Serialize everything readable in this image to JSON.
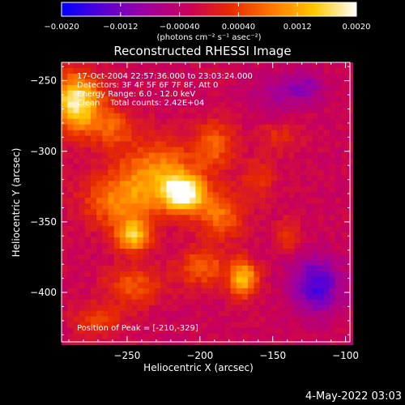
{
  "chart_data": {
    "type": "heatmap",
    "title": "Reconstructed RHESSI Image",
    "xlabel": "Heliocentric X (arcsec)",
    "ylabel": "Heliocentric Y (arcsec)",
    "xlim": [
      -295,
      -97
    ],
    "ylim": [
      -435,
      -237
    ],
    "x_ticks": [
      -250,
      -200,
      -150,
      -100
    ],
    "x_tick_labels": [
      "−250",
      "−200",
      "−150",
      "−100"
    ],
    "y_ticks": [
      -250,
      -300,
      -350,
      -400
    ],
    "y_tick_labels": [
      "−250",
      "−300",
      "−350",
      "−400"
    ],
    "colorbar": {
      "range": [
        -0.002,
        0.002
      ],
      "ticks": [
        -0.002,
        -0.0012,
        -0.0004,
        0.0004,
        0.0012,
        0.002
      ],
      "tick_labels": [
        "−0.0020",
        "−0.0012",
        "−0.00040",
        "0.00040",
        "0.0012",
        "0.0020"
      ],
      "unit_label": "(photons cm⁻² s⁻¹ asec⁻²)",
      "colormap": [
        "#0000ff",
        "#5a00d2",
        "#9f009f",
        "#c8005a",
        "#e62a00",
        "#ff7800",
        "#ffc800",
        "#ffffff"
      ]
    },
    "annotations": [
      "17-Oct-2004 22:57:36.000 to 23:03:24.000",
      "Detectors: 3F 4F 5F 6F 7F 8F, Att 0",
      "Energy Range: 6.0 - 12.0 keV",
      "Clean    Total counts: 2.42E+04"
    ],
    "peak_label": "Position of Peak = [-210,-329]",
    "peak": [
      -210,
      -329
    ],
    "sources": [
      {
        "x": -285,
        "y": -265,
        "value": 0.0021,
        "sx": 12,
        "sy": 14
      },
      {
        "x": -211,
        "y": -330,
        "value": 0.0022,
        "sx": 10,
        "sy": 9
      },
      {
        "x": -228,
        "y": -315,
        "value": 0.0012,
        "sx": 18,
        "sy": 16
      },
      {
        "x": -246,
        "y": -360,
        "value": 0.0016,
        "sx": 8,
        "sy": 8
      },
      {
        "x": -255,
        "y": -335,
        "value": 0.0011,
        "sx": 18,
        "sy": 14
      },
      {
        "x": -186,
        "y": -345,
        "value": 0.001,
        "sx": 12,
        "sy": 12
      },
      {
        "x": -170,
        "y": -390,
        "value": 0.0016,
        "sx": 7,
        "sy": 9
      },
      {
        "x": -198,
        "y": -382,
        "value": 0.0009,
        "sx": 12,
        "sy": 10
      },
      {
        "x": -245,
        "y": -395,
        "value": 0.0008,
        "sx": 14,
        "sy": 10
      },
      {
        "x": -260,
        "y": -283,
        "value": 0.0008,
        "sx": 12,
        "sy": 10
      },
      {
        "x": -190,
        "y": -295,
        "value": 0.0009,
        "sx": 10,
        "sy": 12
      },
      {
        "x": -270,
        "y": -420,
        "value": 0.0007,
        "sx": 12,
        "sy": 8
      },
      {
        "x": -160,
        "y": -320,
        "value": 0.0006,
        "sx": 8,
        "sy": 10
      },
      {
        "x": -140,
        "y": -360,
        "value": 0.0007,
        "sx": 6,
        "sy": 8
      },
      {
        "x": -145,
        "y": -290,
        "value": 0.0005,
        "sx": 10,
        "sy": 8
      },
      {
        "x": -120,
        "y": -395,
        "value": -0.0013,
        "sx": 12,
        "sy": 14
      },
      {
        "x": -128,
        "y": -255,
        "value": -0.0007,
        "sx": 10,
        "sy": 8
      },
      {
        "x": -150,
        "y": -260,
        "value": -0.0004,
        "sx": 12,
        "sy": 10
      }
    ]
  },
  "footer": {
    "timestamp": "4-May-2022 03:03"
  }
}
